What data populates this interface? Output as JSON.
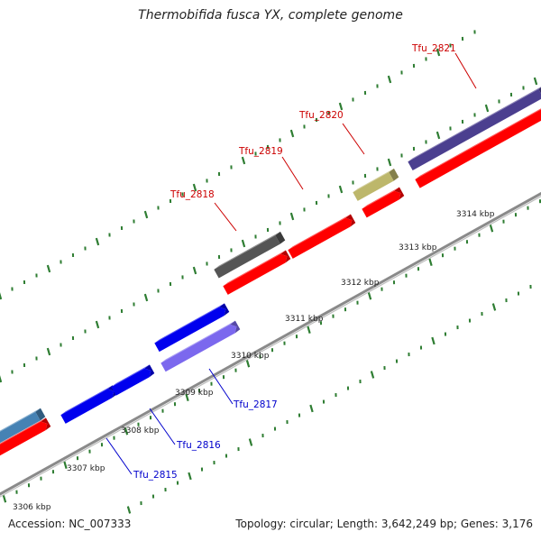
{
  "title": "Thermobifida fusca YX, complete genome",
  "footer": {
    "accession_label": "Accession: NC_007333",
    "stats_label": "Topology: circular; Length: 3,642,249 bp; Genes: 3,176"
  },
  "colors": {
    "backbone": "#8a8a8a",
    "tick": "#2e7d32",
    "plus_label": "#cc0000",
    "minus_label": "#0000cc",
    "ruler_label": "#222222",
    "rna_feature": "#ff0000",
    "cds_blue": "#0000ee",
    "cds_violet": "#7b68ee",
    "cds_navy": "#4b3f8f",
    "cds_grey": "#555555",
    "cds_khaki": "#bdb76b",
    "cds_steel": "#4682b4"
  },
  "ruler_labels": [
    "3306 kbp",
    "3307 kbp",
    "3308 kbp",
    "3309 kbp",
    "3310 kbp",
    "3311 kbp",
    "3312 kbp",
    "3313 kbp",
    "3314 kbp"
  ],
  "gene_labels": {
    "plus": [
      "Tfu_2818",
      "Tfu_2819",
      "Tfu_2820",
      "Tfu_2821"
    ],
    "minus": [
      "Tfu_2815",
      "Tfu_2816",
      "Tfu_2817"
    ]
  }
}
